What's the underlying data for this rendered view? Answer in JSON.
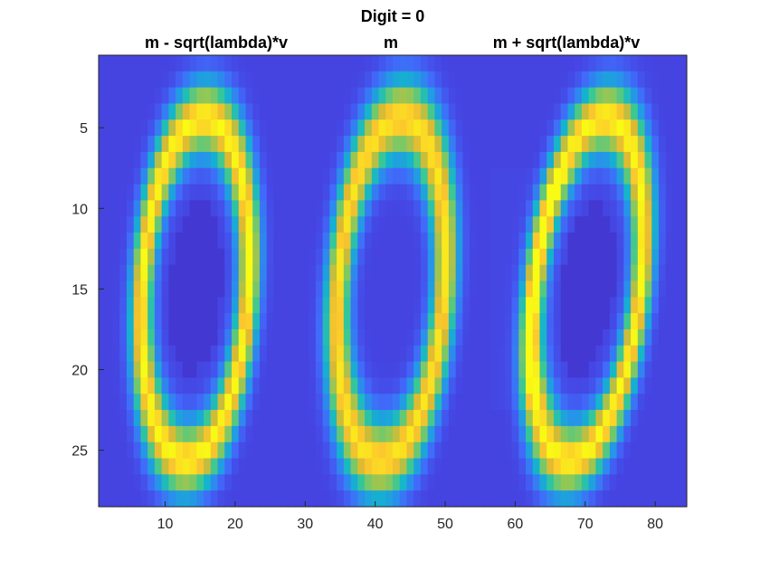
{
  "figure": {
    "title": "Digit = 0",
    "panel_titles": [
      "m - sqrt(lambda)*v",
      "m",
      "m + sqrt(lambda)*v"
    ]
  },
  "chart_data": {
    "type": "heatmap",
    "title": "Digit = 0",
    "xlabel": "",
    "ylabel": "",
    "x_range": [
      0.5,
      84.5
    ],
    "y_range": [
      0.5,
      28.5
    ],
    "y_reversed": true,
    "grid": false,
    "colormap": "parula",
    "x_ticks": [
      10,
      20,
      30,
      40,
      50,
      60,
      70,
      80
    ],
    "y_ticks": [
      5,
      10,
      15,
      20,
      25
    ],
    "image_size": {
      "rows": 28,
      "cols": 84
    },
    "panels": [
      {
        "title": "m - sqrt(lambda)*v",
        "col_range": [
          1,
          28
        ]
      },
      {
        "title": "m",
        "col_range": [
          29,
          56
        ]
      },
      {
        "title": "m + sqrt(lambda)*v",
        "col_range": [
          57,
          84
        ]
      }
    ]
  }
}
